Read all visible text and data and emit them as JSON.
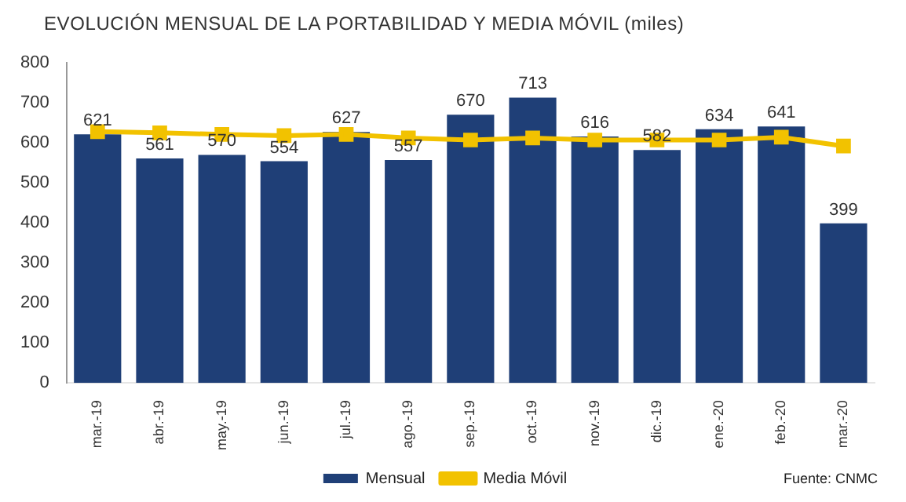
{
  "chart_data": {
    "type": "bar",
    "title": "EVOLUCIÓN MENSUAL DE LA PORTABILIDAD Y MEDIA MÓVIL (miles)",
    "categories": [
      "mar.-19",
      "abr.-19",
      "may.-19",
      "jun.-19",
      "jul.-19",
      "ago.-19",
      "sep.-19",
      "oct.-19",
      "nov.-19",
      "dic.-19",
      "ene.-20",
      "feb.-20",
      "mar.-20"
    ],
    "series": [
      {
        "name": "Mensual",
        "color": "#1f3f77",
        "values": [
          621,
          561,
          570,
          554,
          627,
          557,
          670,
          713,
          616,
          582,
          634,
          641,
          399
        ],
        "value_labels": [
          "621",
          "561",
          "570",
          "554",
          "627",
          "557",
          "670",
          "713",
          "616",
          "582",
          "634",
          "641",
          "399"
        ]
      },
      {
        "name": "Media Móvil",
        "type": "line",
        "color": "#f2c200",
        "marker": "square",
        "values": [
          628,
          625,
          621,
          618,
          621,
          612,
          607,
          612,
          607,
          607,
          607,
          614,
          592
        ]
      }
    ],
    "ylim": [
      0,
      800
    ],
    "yticks": [
      0,
      100,
      200,
      300,
      400,
      500,
      600,
      700,
      800
    ],
    "grid": false,
    "legend": "bottom",
    "annotations": [
      "Fuente: CNMC"
    ]
  }
}
